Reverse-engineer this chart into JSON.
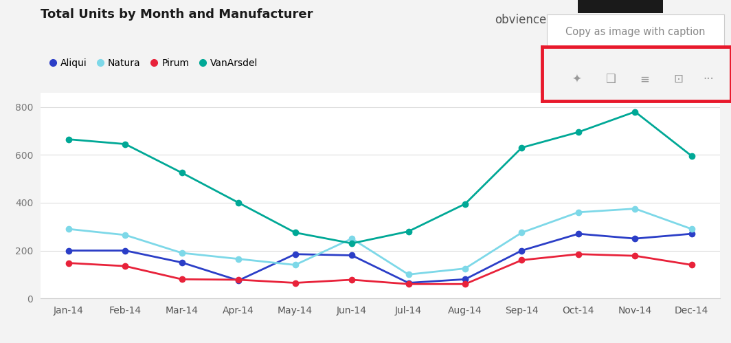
{
  "title": "Total Units by Month and Manufacturer",
  "months": [
    "Jan-14",
    "Feb-14",
    "Mar-14",
    "Apr-14",
    "May-14",
    "Jun-14",
    "Jul-14",
    "Aug-14",
    "Sep-14",
    "Oct-14",
    "Nov-14",
    "Dec-14"
  ],
  "series": {
    "Aliqui": {
      "values": [
        200,
        200,
        150,
        75,
        185,
        180,
        65,
        80,
        200,
        270,
        250,
        270
      ],
      "color": "#2B3EC7"
    },
    "Natura": {
      "values": [
        290,
        265,
        190,
        165,
        140,
        250,
        100,
        125,
        275,
        360,
        375,
        290
      ],
      "color": "#7DD8E8"
    },
    "Pirum": {
      "values": [
        148,
        135,
        80,
        78,
        65,
        78,
        60,
        60,
        160,
        185,
        178,
        140
      ],
      "color": "#E8223A"
    },
    "VanArsdel": {
      "values": [
        665,
        645,
        525,
        400,
        275,
        230,
        280,
        395,
        630,
        695,
        780,
        595
      ],
      "color": "#00A896"
    }
  },
  "ylim": [
    0,
    860
  ],
  "yticks": [
    0,
    200,
    400,
    600,
    800
  ],
  "bg_color": "#F3F3F3",
  "plot_bg": "#FFFFFF",
  "grid_color": "#DDDDDD",
  "tooltip_text": "Copy as image with caption",
  "tooltip_bg": "#FFFFFF",
  "red_box_color": "#E8192C",
  "obvience_text": "obvience"
}
